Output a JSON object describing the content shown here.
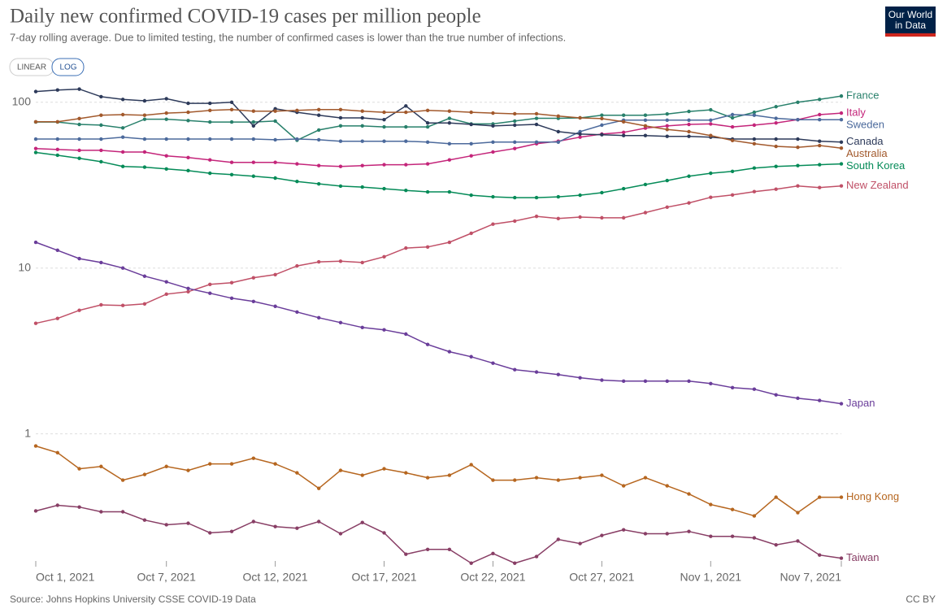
{
  "chart_data": {
    "type": "line",
    "title": "Daily new confirmed COVID-19 cases per million people",
    "subtitle": "7-day rolling average. Due to limited testing, the number of confirmed cases is lower than the true number of infections.",
    "source": "Source: Johns Hopkins University CSSE COVID-19 Data",
    "license": "CC BY",
    "log_scale": true,
    "grid": true,
    "x": [
      "2021-10-01",
      "2021-10-02",
      "2021-10-03",
      "2021-10-04",
      "2021-10-05",
      "2021-10-06",
      "2021-10-07",
      "2021-10-08",
      "2021-10-09",
      "2021-10-10",
      "2021-10-11",
      "2021-10-12",
      "2021-10-13",
      "2021-10-14",
      "2021-10-15",
      "2021-10-16",
      "2021-10-17",
      "2021-10-18",
      "2021-10-19",
      "2021-10-20",
      "2021-10-21",
      "2021-10-22",
      "2021-10-23",
      "2021-10-24",
      "2021-10-25",
      "2021-10-26",
      "2021-10-27",
      "2021-10-28",
      "2021-10-29",
      "2021-10-30",
      "2021-10-31",
      "2021-11-01",
      "2021-11-02",
      "2021-11-03",
      "2021-11-04",
      "2021-11-05",
      "2021-11-06",
      "2021-11-07"
    ],
    "xlim": [
      "2021-10-01",
      "2021-11-07"
    ],
    "xticks": [
      {
        "value": "2021-10-01",
        "label": "Oct 1, 2021"
      },
      {
        "value": "2021-10-07",
        "label": "Oct 7, 2021"
      },
      {
        "value": "2021-10-12",
        "label": "Oct 12, 2021"
      },
      {
        "value": "2021-10-17",
        "label": "Oct 17, 2021"
      },
      {
        "value": "2021-10-22",
        "label": "Oct 22, 2021"
      },
      {
        "value": "2021-10-27",
        "label": "Oct 27, 2021"
      },
      {
        "value": "2021-11-01",
        "label": "Nov 1, 2021"
      },
      {
        "value": "2021-11-07",
        "label": "Nov 7, 2021"
      }
    ],
    "ylim": [
      0.16,
      125
    ],
    "yticks": [
      1,
      10,
      100
    ],
    "series": [
      {
        "name": "France",
        "color": "#28806b",
        "values": [
          76,
          76,
          73.5,
          72.8,
          70,
          79,
          79,
          77.5,
          76,
          76,
          76,
          77,
          59,
          68,
          72,
          72,
          71,
          71,
          71,
          80,
          74,
          74,
          77,
          80,
          80,
          80.5,
          83.5,
          83.5,
          83.5,
          85,
          88,
          90,
          80.5,
          87,
          94,
          100,
          104,
          109
        ]
      },
      {
        "name": "Italy",
        "color": "#c4257a",
        "values": [
          52.6,
          51.9,
          51.3,
          51.3,
          50.1,
          50.1,
          47.5,
          46.4,
          44.9,
          43.4,
          43.4,
          43.4,
          42.5,
          41.5,
          41,
          41.5,
          42,
          42,
          42.5,
          44.9,
          47.5,
          50.1,
          52.6,
          56.2,
          58.2,
          61.6,
          64.3,
          65.8,
          69.8,
          72,
          73.5,
          74,
          71,
          72.8,
          75,
          78.5,
          84.2,
          86
        ]
      },
      {
        "name": "Sweden",
        "color": "#4c6a9c",
        "values": [
          60,
          60,
          60,
          60,
          61.6,
          60,
          60,
          60,
          60,
          60,
          60,
          59.4,
          60,
          59.4,
          58.2,
          58.2,
          58.2,
          58.2,
          57.5,
          56.2,
          56.2,
          57.5,
          57.5,
          57.5,
          57.5,
          66.5,
          72.8,
          78,
          78,
          78,
          78,
          78,
          84.2,
          83.5,
          80,
          78.5,
          78.5,
          78.5
        ]
      },
      {
        "name": "Canada",
        "color": "#2d3a5a",
        "values": [
          116,
          118.5,
          120,
          108,
          104,
          102,
          105,
          98.5,
          98.5,
          100,
          72,
          91.3,
          87,
          83.5,
          80.5,
          80.5,
          78.5,
          95,
          75,
          75,
          73.5,
          72,
          72.8,
          73.5,
          66.5,
          64.3,
          63.7,
          63,
          63,
          62.3,
          62.3,
          61.6,
          60,
          60,
          60,
          60,
          58.2,
          57.5
        ]
      },
      {
        "name": "Australia",
        "color": "#a2592c",
        "values": [
          76.2,
          76.2,
          79.7,
          83.5,
          84.2,
          83.5,
          86,
          87,
          89.3,
          90.3,
          88.4,
          88.4,
          89.3,
          90.3,
          90.3,
          88.4,
          87,
          87,
          89.3,
          88.4,
          87,
          86,
          85.2,
          85.2,
          82.5,
          80.5,
          79.7,
          76.2,
          72,
          68.5,
          66.5,
          63,
          58.8,
          56.2,
          54.2,
          53.5,
          54.8,
          52.9
        ]
      },
      {
        "name": "South Korea",
        "color": "#058b58",
        "values": [
          49.8,
          47.9,
          45.9,
          43.8,
          41,
          40.6,
          39.6,
          38.7,
          37.3,
          36.6,
          35.8,
          34.9,
          33.3,
          32.2,
          31.2,
          30.8,
          30.1,
          29.4,
          28.8,
          28.8,
          27.5,
          26.9,
          26.6,
          26.6,
          26.9,
          27.5,
          28.5,
          30.1,
          31.9,
          33.7,
          35.8,
          37.3,
          38.3,
          40.1,
          41,
          41.5,
          42,
          42.5
        ]
      },
      {
        "name": "New Zealand",
        "color": "#c05067",
        "values": [
          4.64,
          4.97,
          5.56,
          6.0,
          5.95,
          6.08,
          6.96,
          7.2,
          7.97,
          8.16,
          8.74,
          9.13,
          10.3,
          10.9,
          11.0,
          10.8,
          11.7,
          13.2,
          13.4,
          14.3,
          16.2,
          18.4,
          19.2,
          20.5,
          19.9,
          20.3,
          20.1,
          20.1,
          21.6,
          23.3,
          24.7,
          26.7,
          27.6,
          28.9,
          29.9,
          31.3,
          30.6,
          31.3
        ]
      },
      {
        "name": "Japan",
        "color": "#6a3d9a",
        "values": [
          14.3,
          12.8,
          11.4,
          10.8,
          10.0,
          8.93,
          8.26,
          7.53,
          7.05,
          6.58,
          6.29,
          5.88,
          5.43,
          5.02,
          4.69,
          4.38,
          4.24,
          4.0,
          3.46,
          3.13,
          2.92,
          2.67,
          2.44,
          2.36,
          2.28,
          2.18,
          2.11,
          2.08,
          2.08,
          2.08,
          2.08,
          2.01,
          1.9,
          1.86,
          1.72,
          1.64,
          1.59,
          1.52
        ]
      },
      {
        "name": "Hong Kong",
        "color": "#b6661f",
        "values": [
          0.845,
          0.77,
          0.616,
          0.636,
          0.526,
          0.569,
          0.636,
          0.602,
          0.659,
          0.659,
          0.713,
          0.659,
          0.582,
          0.469,
          0.602,
          0.563,
          0.616,
          0.582,
          0.544,
          0.563,
          0.652,
          0.526,
          0.526,
          0.544,
          0.526,
          0.544,
          0.563,
          0.486,
          0.544,
          0.486,
          0.434,
          0.375,
          0.35,
          0.32,
          0.415,
          0.335,
          0.415,
          0.415
        ]
      },
      {
        "name": "Taiwan",
        "color": "#883e65",
        "values": [
          0.343,
          0.371,
          0.362,
          0.339,
          0.339,
          0.302,
          0.283,
          0.289,
          0.253,
          0.258,
          0.296,
          0.276,
          0.27,
          0.296,
          0.25,
          0.292,
          0.253,
          0.188,
          0.201,
          0.201,
          0.166,
          0.19,
          0.166,
          0.182,
          0.231,
          0.218,
          0.244,
          0.264,
          0.25,
          0.25,
          0.258,
          0.241,
          0.241,
          0.236,
          0.214,
          0.226,
          0.186,
          0.178
        ]
      }
    ]
  },
  "controls": {
    "linear": "LINEAR",
    "log": "LOG"
  },
  "logo": {
    "line1": "Our World",
    "line2": "in Data"
  }
}
